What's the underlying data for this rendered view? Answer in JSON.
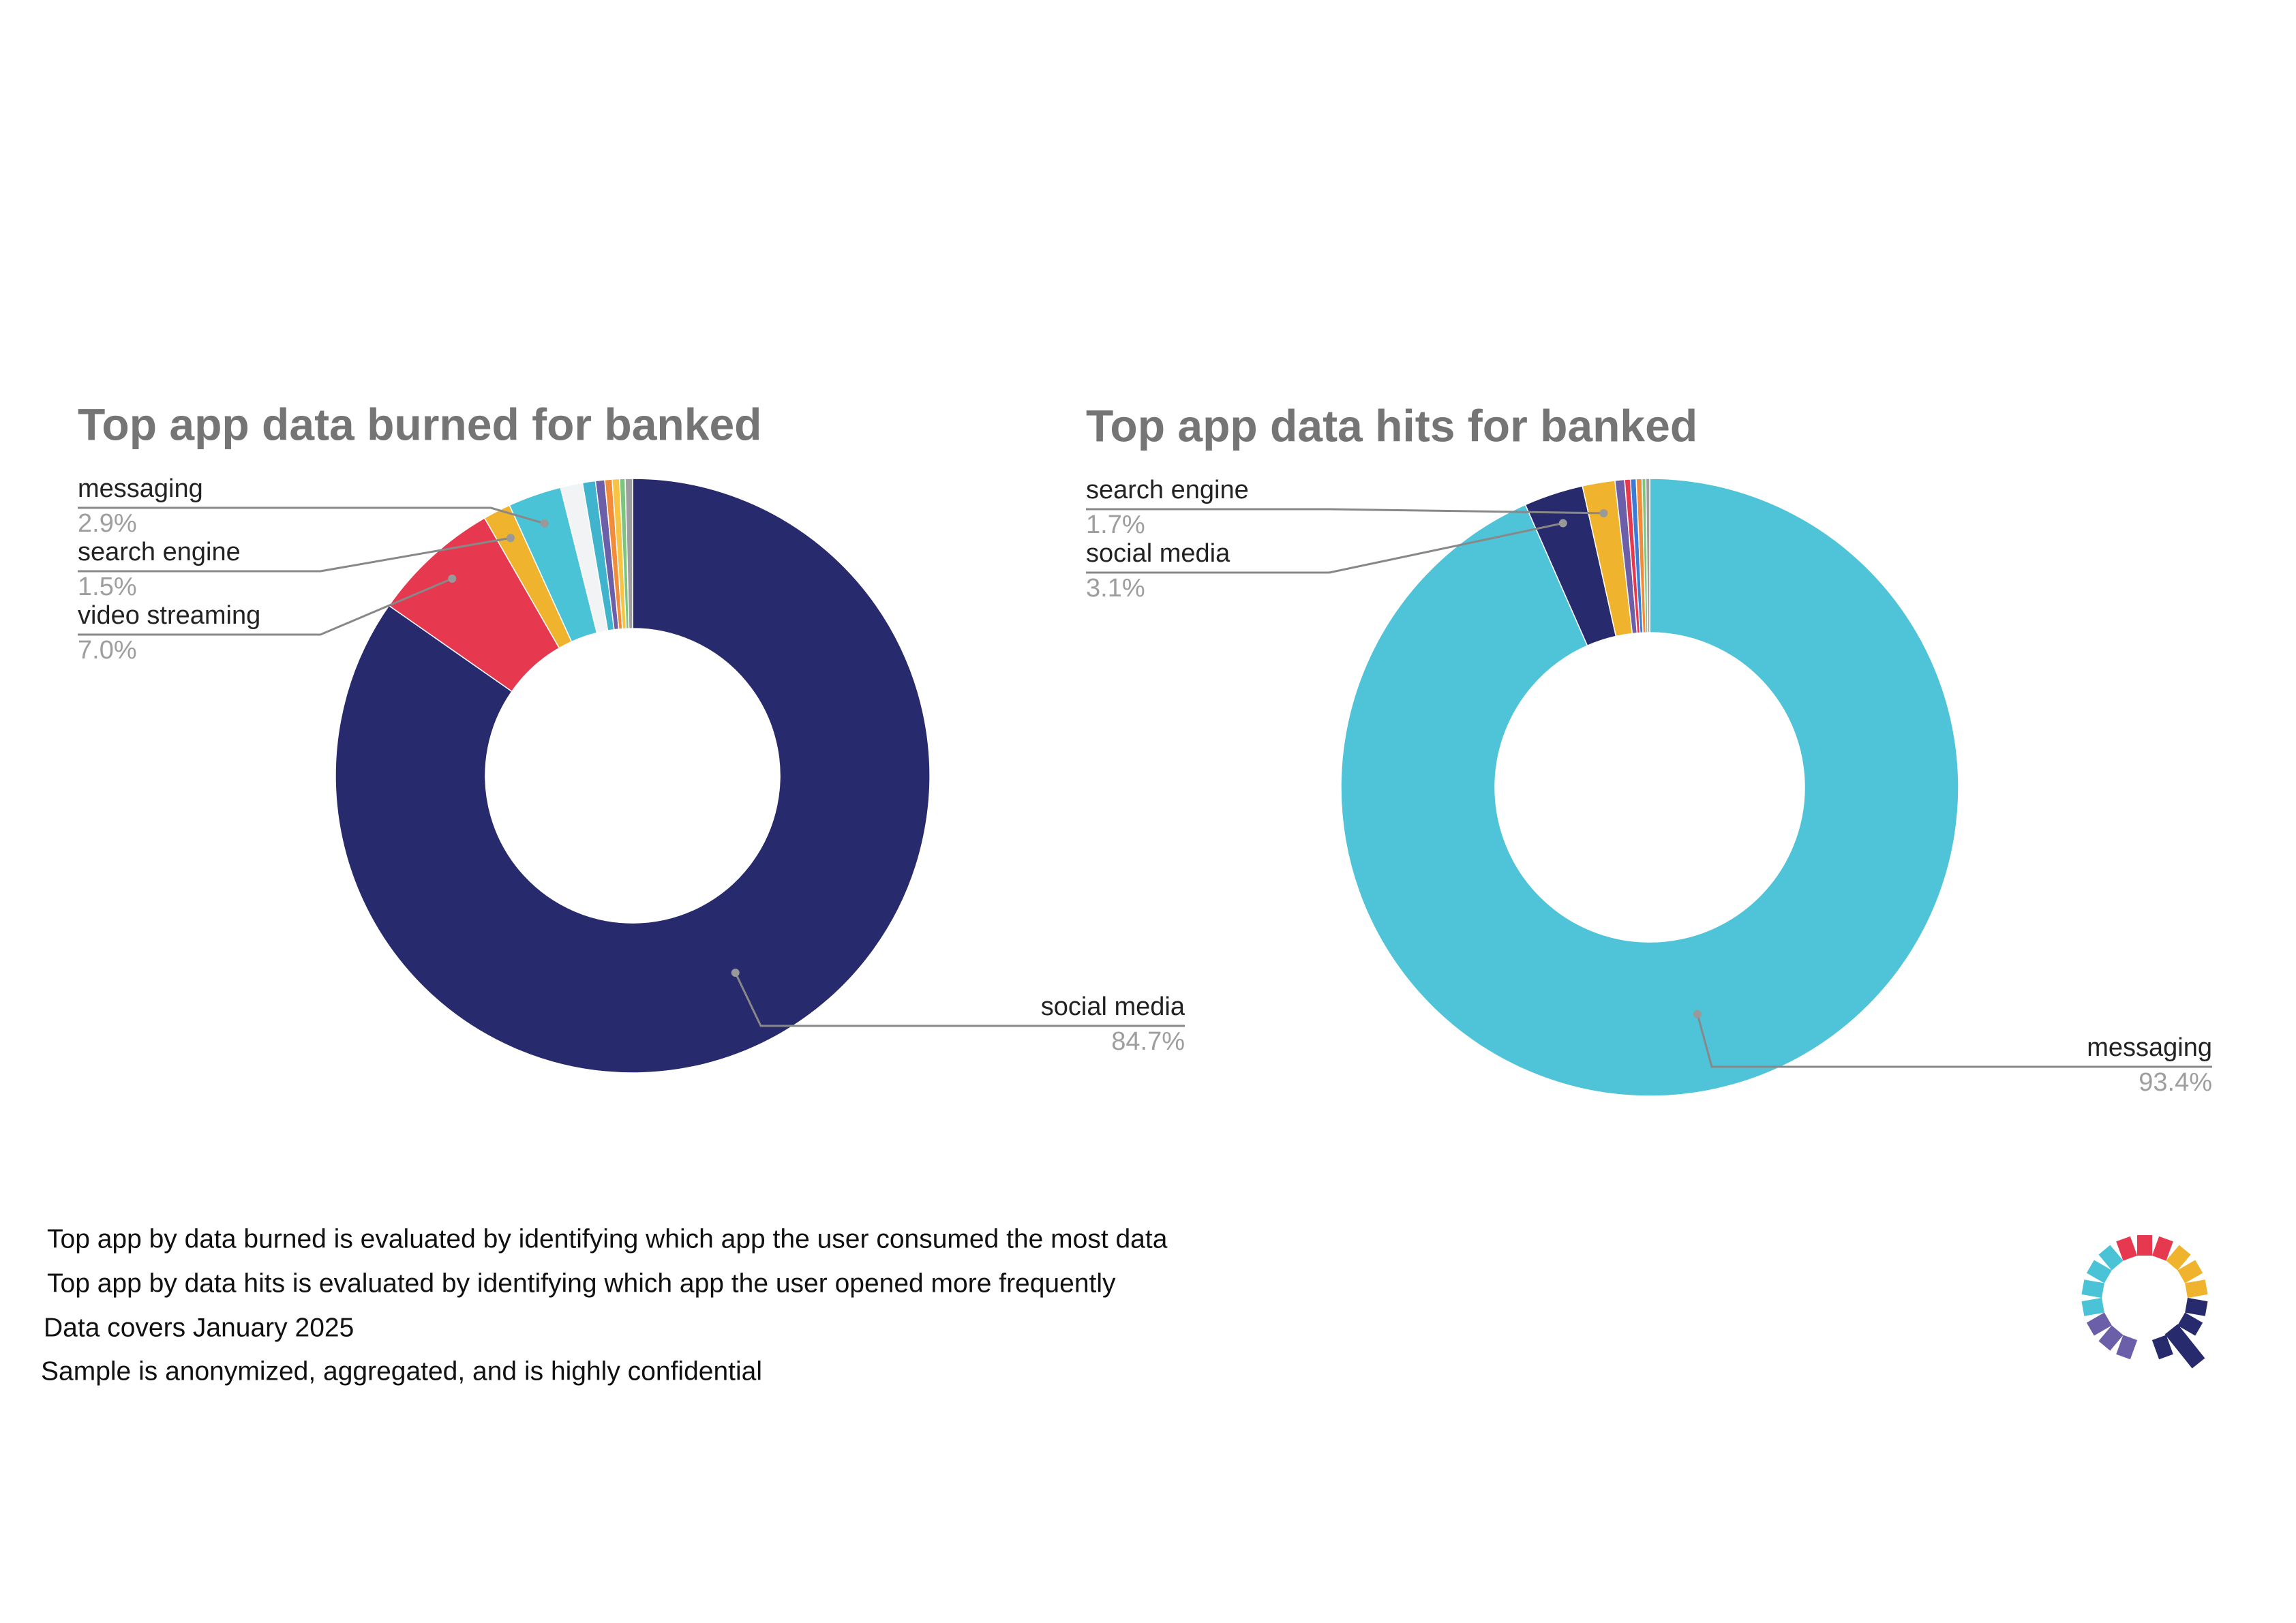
{
  "chart_data": [
    {
      "type": "donut",
      "title": "Top app data burned for banked",
      "categories": [
        "social media",
        "video streaming",
        "search engine",
        "messaging",
        null,
        null,
        null,
        null,
        null,
        null,
        null
      ],
      "values": [
        84.7,
        7.0,
        1.5,
        2.9,
        1.2,
        0.7,
        0.5,
        0.4,
        0.4,
        0.3,
        0.4
      ],
      "value_labels": [
        "84.7%",
        "7.0%",
        "1.5%",
        "2.9%",
        null,
        null,
        null,
        null,
        null,
        null,
        null
      ],
      "colors": [
        "#272a6c",
        "#e6384f",
        "#efb32e",
        "#4bc3d7",
        "#f1f3f4",
        "#3fb4cc",
        "#6a5fa8",
        "#f28c3a",
        "#f6c343",
        "#7cc57e",
        "#9e9e9e"
      ]
    },
    {
      "type": "donut",
      "title": "Top app data hits for banked",
      "categories": [
        "messaging",
        "social media",
        "search engine",
        null,
        null,
        null,
        null,
        null,
        null
      ],
      "values": [
        93.4,
        3.1,
        1.7,
        0.5,
        0.3,
        0.3,
        0.3,
        0.2,
        0.2
      ],
      "value_labels": [
        "93.4%",
        "3.1%",
        "1.7%",
        null,
        null,
        null,
        null,
        null,
        null
      ],
      "colors": [
        "#4fc3d8",
        "#272a6c",
        "#efb32e",
        "#6a5fa8",
        "#e6384f",
        "#3d7bd9",
        "#f28c3a",
        "#7cc57e",
        "#9e9e9e"
      ]
    }
  ],
  "notes": [
    "Top app by data burned is evaluated by identifying which app the user consumed the most data",
    "Top app by data hits is evaluated by identifying which app the user opened more frequently",
    "Data covers January 2025",
    "Sample is anonymized, aggregated, and is highly confidential"
  ]
}
